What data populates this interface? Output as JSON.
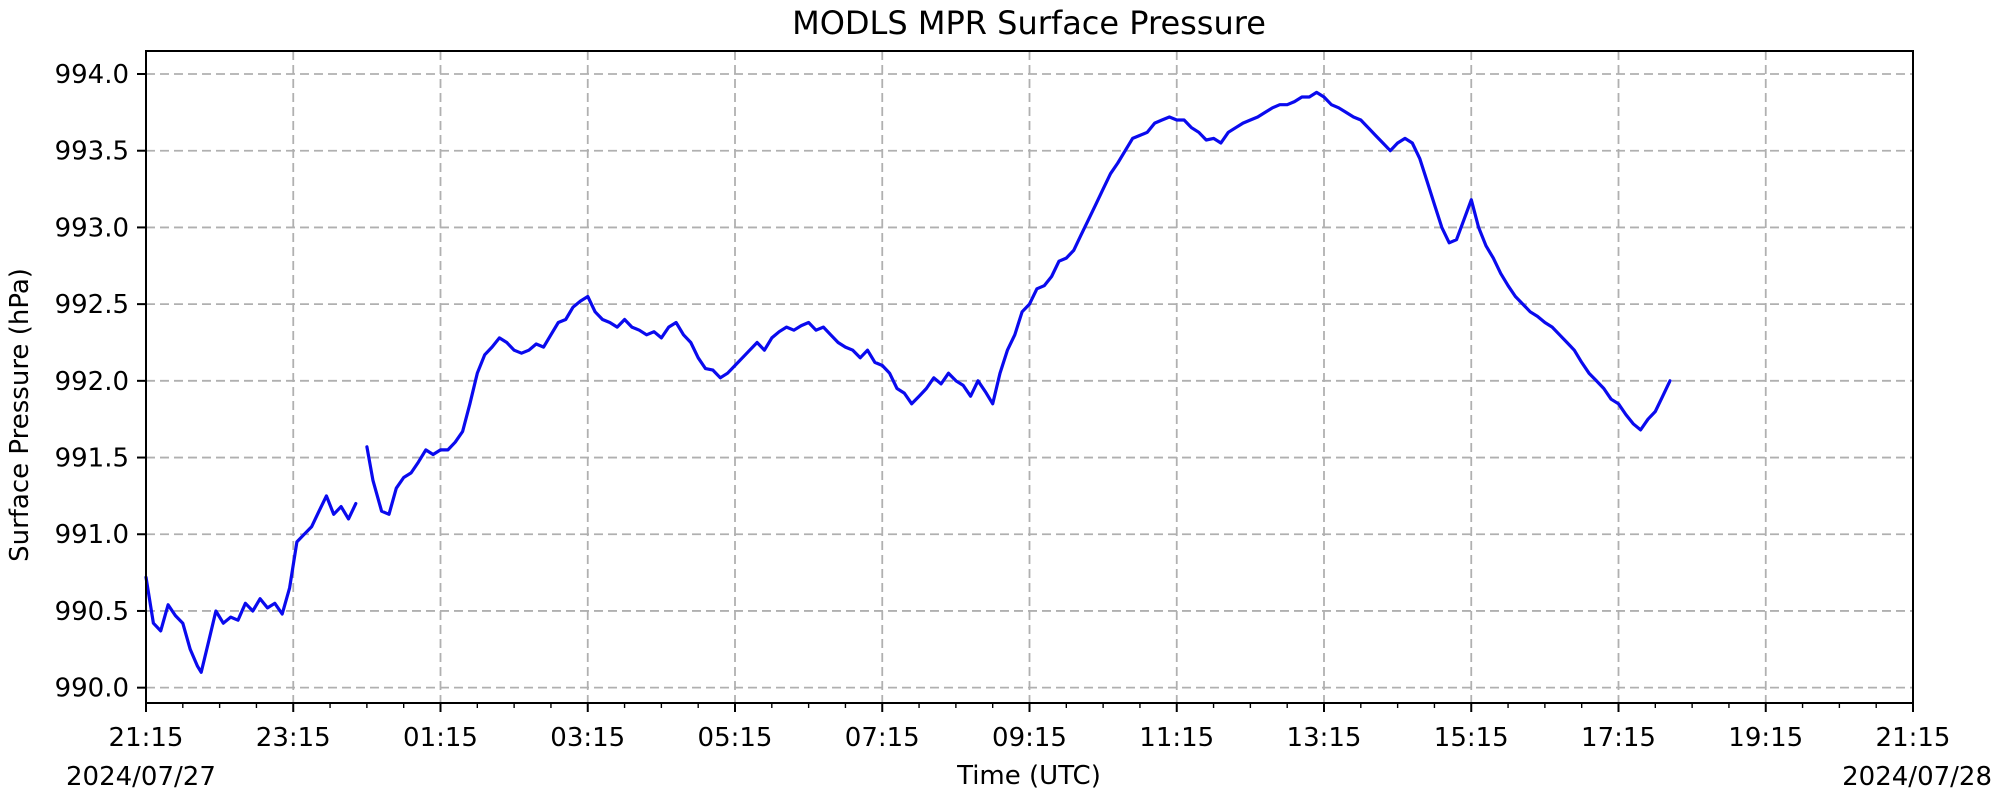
{
  "chart_data": {
    "type": "line",
    "title": "MODLS MPR Surface Pressure",
    "xlabel": "Time (UTC)",
    "ylabel": "Surface Pressure (hPa)",
    "xlim": [
      "2024-07-27 21:15",
      "2024-07-28 21:15"
    ],
    "ylim": [
      989.9,
      994.15
    ],
    "grid": true,
    "x_tick_labels": [
      "21:15",
      "23:15",
      "01:15",
      "03:15",
      "05:15",
      "07:15",
      "09:15",
      "11:15",
      "13:15",
      "15:15",
      "17:15",
      "19:15",
      "21:15"
    ],
    "x_date_labels": {
      "start": "2024/07/27",
      "end": "2024/07/28"
    },
    "y_ticks": [
      990.0,
      990.5,
      991.0,
      991.5,
      992.0,
      992.5,
      993.0,
      993.5,
      994.0
    ],
    "y_tick_labels": [
      "990.0",
      "990.5",
      "991.0",
      "991.5",
      "992.0",
      "992.5",
      "993.0",
      "993.5",
      "994.0"
    ],
    "color": "#0a0aee",
    "series": [
      {
        "segments": [
          [
            [
              "2024-07-27 21:15",
              990.72
            ],
            [
              "2024-07-27 21:21",
              990.42
            ],
            [
              "2024-07-27 21:27",
              990.37
            ],
            [
              "2024-07-27 21:33",
              990.54
            ],
            [
              "2024-07-27 21:39",
              990.47
            ],
            [
              "2024-07-27 21:45",
              990.42
            ],
            [
              "2024-07-27 21:51",
              990.25
            ],
            [
              "2024-07-27 21:57",
              990.14
            ],
            [
              "2024-07-27 22:00",
              990.1
            ],
            [
              "2024-07-27 22:06",
              990.3
            ],
            [
              "2024-07-27 22:12",
              990.5
            ],
            [
              "2024-07-27 22:18",
              990.42
            ],
            [
              "2024-07-27 22:24",
              990.46
            ],
            [
              "2024-07-27 22:30",
              990.44
            ],
            [
              "2024-07-27 22:36",
              990.55
            ],
            [
              "2024-07-27 22:42",
              990.5
            ],
            [
              "2024-07-27 22:48",
              990.58
            ],
            [
              "2024-07-27 22:54",
              990.52
            ],
            [
              "2024-07-27 23:00",
              990.55
            ],
            [
              "2024-07-27 23:06",
              990.48
            ],
            [
              "2024-07-27 23:12",
              990.65
            ],
            [
              "2024-07-27 23:18",
              990.95
            ],
            [
              "2024-07-27 23:24",
              991.0
            ],
            [
              "2024-07-27 23:30",
              991.05
            ],
            [
              "2024-07-27 23:36",
              991.15
            ],
            [
              "2024-07-27 23:42",
              991.25
            ],
            [
              "2024-07-27 23:48",
              991.13
            ],
            [
              "2024-07-27 23:54",
              991.18
            ],
            [
              "2024-07-28 00:00",
              991.1
            ],
            [
              "2024-07-28 00:06",
              991.2
            ]
          ],
          [
            [
              "2024-07-28 00:15",
              991.57
            ],
            [
              "2024-07-28 00:20",
              991.35
            ],
            [
              "2024-07-28 00:27",
              991.15
            ],
            [
              "2024-07-28 00:33",
              991.13
            ],
            [
              "2024-07-28 00:39",
              991.3
            ],
            [
              "2024-07-28 00:45",
              991.37
            ],
            [
              "2024-07-28 00:51",
              991.4
            ],
            [
              "2024-07-28 00:57",
              991.47
            ],
            [
              "2024-07-28 01:03",
              991.55
            ],
            [
              "2024-07-28 01:09",
              991.52
            ],
            [
              "2024-07-28 01:15",
              991.55
            ],
            [
              "2024-07-28 01:21",
              991.55
            ],
            [
              "2024-07-28 01:27",
              991.6
            ],
            [
              "2024-07-28 01:33",
              991.67
            ],
            [
              "2024-07-28 01:39",
              991.85
            ],
            [
              "2024-07-28 01:45",
              992.05
            ],
            [
              "2024-07-28 01:51",
              992.17
            ],
            [
              "2024-07-28 01:57",
              992.22
            ],
            [
              "2024-07-28 02:03",
              992.28
            ],
            [
              "2024-07-28 02:09",
              992.25
            ],
            [
              "2024-07-28 02:15",
              992.2
            ],
            [
              "2024-07-28 02:21",
              992.18
            ],
            [
              "2024-07-28 02:27",
              992.2
            ],
            [
              "2024-07-28 02:33",
              992.24
            ],
            [
              "2024-07-28 02:39",
              992.22
            ],
            [
              "2024-07-28 02:45",
              992.3
            ],
            [
              "2024-07-28 02:51",
              992.38
            ],
            [
              "2024-07-28 02:57",
              992.4
            ],
            [
              "2024-07-28 03:03",
              992.48
            ],
            [
              "2024-07-28 03:09",
              992.52
            ],
            [
              "2024-07-28 03:15",
              992.55
            ],
            [
              "2024-07-28 03:21",
              992.45
            ],
            [
              "2024-07-28 03:27",
              992.4
            ],
            [
              "2024-07-28 03:33",
              992.38
            ],
            [
              "2024-07-28 03:39",
              992.35
            ],
            [
              "2024-07-28 03:45",
              992.4
            ],
            [
              "2024-07-28 03:51",
              992.35
            ],
            [
              "2024-07-28 03:57",
              992.33
            ],
            [
              "2024-07-28 04:03",
              992.3
            ],
            [
              "2024-07-28 04:09",
              992.32
            ],
            [
              "2024-07-28 04:15",
              992.28
            ],
            [
              "2024-07-28 04:21",
              992.35
            ],
            [
              "2024-07-28 04:27",
              992.38
            ],
            [
              "2024-07-28 04:33",
              992.3
            ],
            [
              "2024-07-28 04:39",
              992.25
            ],
            [
              "2024-07-28 04:45",
              992.15
            ],
            [
              "2024-07-28 04:51",
              992.08
            ],
            [
              "2024-07-28 04:57",
              992.07
            ],
            [
              "2024-07-28 05:03",
              992.02
            ],
            [
              "2024-07-28 05:09",
              992.05
            ],
            [
              "2024-07-28 05:15",
              992.1
            ],
            [
              "2024-07-28 05:21",
              992.15
            ],
            [
              "2024-07-28 05:27",
              992.2
            ],
            [
              "2024-07-28 05:33",
              992.25
            ],
            [
              "2024-07-28 05:39",
              992.2
            ],
            [
              "2024-07-28 05:45",
              992.28
            ],
            [
              "2024-07-28 05:51",
              992.32
            ],
            [
              "2024-07-28 05:57",
              992.35
            ],
            [
              "2024-07-28 06:03",
              992.33
            ],
            [
              "2024-07-28 06:09",
              992.36
            ],
            [
              "2024-07-28 06:15",
              992.38
            ],
            [
              "2024-07-28 06:21",
              992.33
            ],
            [
              "2024-07-28 06:27",
              992.35
            ],
            [
              "2024-07-28 06:33",
              992.3
            ],
            [
              "2024-07-28 06:39",
              992.25
            ],
            [
              "2024-07-28 06:45",
              992.22
            ],
            [
              "2024-07-28 06:51",
              992.2
            ],
            [
              "2024-07-28 06:57",
              992.15
            ],
            [
              "2024-07-28 07:03",
              992.2
            ],
            [
              "2024-07-28 07:09",
              992.12
            ],
            [
              "2024-07-28 07:15",
              992.1
            ],
            [
              "2024-07-28 07:21",
              992.05
            ],
            [
              "2024-07-28 07:27",
              991.95
            ],
            [
              "2024-07-28 07:33",
              991.92
            ],
            [
              "2024-07-28 07:39",
              991.85
            ],
            [
              "2024-07-28 07:45",
              991.9
            ],
            [
              "2024-07-28 07:51",
              991.95
            ],
            [
              "2024-07-28 07:57",
              992.02
            ],
            [
              "2024-07-28 08:03",
              991.98
            ],
            [
              "2024-07-28 08:09",
              992.05
            ],
            [
              "2024-07-28 08:15",
              992.0
            ],
            [
              "2024-07-28 08:21",
              991.97
            ],
            [
              "2024-07-28 08:27",
              991.9
            ],
            [
              "2024-07-28 08:33",
              992.0
            ],
            [
              "2024-07-28 08:39",
              991.93
            ],
            [
              "2024-07-28 08:45",
              991.85
            ],
            [
              "2024-07-28 08:51",
              992.05
            ],
            [
              "2024-07-28 08:57",
              992.2
            ],
            [
              "2024-07-28 09:03",
              992.3
            ],
            [
              "2024-07-28 09:09",
              992.45
            ],
            [
              "2024-07-28 09:15",
              992.5
            ],
            [
              "2024-07-28 09:21",
              992.6
            ],
            [
              "2024-07-28 09:27",
              992.62
            ],
            [
              "2024-07-28 09:33",
              992.68
            ],
            [
              "2024-07-28 09:39",
              992.78
            ],
            [
              "2024-07-28 09:45",
              992.8
            ],
            [
              "2024-07-28 09:51",
              992.85
            ],
            [
              "2024-07-28 09:57",
              992.95
            ],
            [
              "2024-07-28 10:03",
              993.05
            ],
            [
              "2024-07-28 10:09",
              993.15
            ],
            [
              "2024-07-28 10:15",
              993.25
            ],
            [
              "2024-07-28 10:21",
              993.35
            ],
            [
              "2024-07-28 10:27",
              993.42
            ],
            [
              "2024-07-28 10:33",
              993.5
            ],
            [
              "2024-07-28 10:39",
              993.58
            ],
            [
              "2024-07-28 10:45",
              993.6
            ],
            [
              "2024-07-28 10:51",
              993.62
            ],
            [
              "2024-07-28 10:57",
              993.68
            ],
            [
              "2024-07-28 11:03",
              993.7
            ],
            [
              "2024-07-28 11:09",
              993.72
            ],
            [
              "2024-07-28 11:15",
              993.7
            ],
            [
              "2024-07-28 11:21",
              993.7
            ],
            [
              "2024-07-28 11:27",
              993.65
            ],
            [
              "2024-07-28 11:33",
              993.62
            ],
            [
              "2024-07-28 11:39",
              993.57
            ],
            [
              "2024-07-28 11:45",
              993.58
            ],
            [
              "2024-07-28 11:51",
              993.55
            ],
            [
              "2024-07-28 11:57",
              993.62
            ],
            [
              "2024-07-28 12:03",
              993.65
            ],
            [
              "2024-07-28 12:09",
              993.68
            ],
            [
              "2024-07-28 12:15",
              993.7
            ],
            [
              "2024-07-28 12:21",
              993.72
            ],
            [
              "2024-07-28 12:27",
              993.75
            ],
            [
              "2024-07-28 12:33",
              993.78
            ],
            [
              "2024-07-28 12:39",
              993.8
            ],
            [
              "2024-07-28 12:45",
              993.8
            ],
            [
              "2024-07-28 12:51",
              993.82
            ],
            [
              "2024-07-28 12:57",
              993.85
            ],
            [
              "2024-07-28 13:03",
              993.85
            ],
            [
              "2024-07-28 13:09",
              993.88
            ],
            [
              "2024-07-28 13:15",
              993.85
            ],
            [
              "2024-07-28 13:21",
              993.8
            ],
            [
              "2024-07-28 13:27",
              993.78
            ],
            [
              "2024-07-28 13:33",
              993.75
            ],
            [
              "2024-07-28 13:39",
              993.72
            ],
            [
              "2024-07-28 13:45",
              993.7
            ],
            [
              "2024-07-28 13:51",
              993.65
            ],
            [
              "2024-07-28 13:57",
              993.6
            ],
            [
              "2024-07-28 14:03",
              993.55
            ],
            [
              "2024-07-28 14:09",
              993.5
            ],
            [
              "2024-07-28 14:15",
              993.55
            ],
            [
              "2024-07-28 14:21",
              993.58
            ],
            [
              "2024-07-28 14:27",
              993.55
            ],
            [
              "2024-07-28 14:33",
              993.45
            ],
            [
              "2024-07-28 14:39",
              993.3
            ],
            [
              "2024-07-28 14:45",
              993.15
            ],
            [
              "2024-07-28 14:51",
              993.0
            ],
            [
              "2024-07-28 14:57",
              992.9
            ],
            [
              "2024-07-28 15:03",
              992.92
            ],
            [
              "2024-07-28 15:09",
              993.05
            ],
            [
              "2024-07-28 15:15",
              993.18
            ],
            [
              "2024-07-28 15:21",
              993.0
            ],
            [
              "2024-07-28 15:27",
              992.88
            ],
            [
              "2024-07-28 15:33",
              992.8
            ],
            [
              "2024-07-28 15:39",
              992.7
            ],
            [
              "2024-07-28 15:45",
              992.62
            ],
            [
              "2024-07-28 15:51",
              992.55
            ],
            [
              "2024-07-28 15:57",
              992.5
            ],
            [
              "2024-07-28 16:03",
              992.45
            ],
            [
              "2024-07-28 16:09",
              992.42
            ],
            [
              "2024-07-28 16:15",
              992.38
            ],
            [
              "2024-07-28 16:21",
              992.35
            ],
            [
              "2024-07-28 16:27",
              992.3
            ],
            [
              "2024-07-28 16:33",
              992.25
            ],
            [
              "2024-07-28 16:39",
              992.2
            ],
            [
              "2024-07-28 16:45",
              992.12
            ],
            [
              "2024-07-28 16:51",
              992.05
            ],
            [
              "2024-07-28 16:57",
              992.0
            ],
            [
              "2024-07-28 17:03",
              991.95
            ],
            [
              "2024-07-28 17:09",
              991.88
            ],
            [
              "2024-07-28 17:15",
              991.85
            ],
            [
              "2024-07-28 17:21",
              991.78
            ],
            [
              "2024-07-28 17:27",
              991.72
            ],
            [
              "2024-07-28 17:33",
              991.68
            ],
            [
              "2024-07-28 17:39",
              991.75
            ],
            [
              "2024-07-28 17:45",
              991.8
            ],
            [
              "2024-07-28 17:51",
              991.9
            ],
            [
              "2024-07-28 17:57",
              992.0
            ]
          ]
        ]
      }
    ]
  }
}
